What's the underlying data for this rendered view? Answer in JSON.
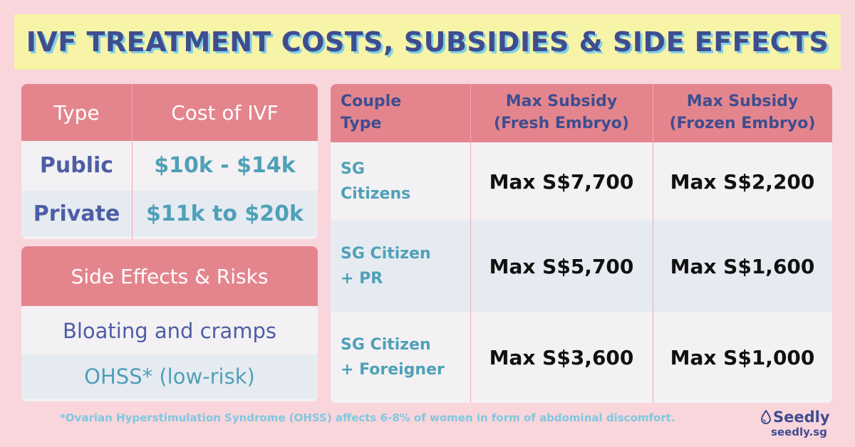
{
  "title": "IVF TREATMENT COSTS, SUBSIDIES & SIDE EFFECTS",
  "cost_table": {
    "headers": [
      "Type",
      "Cost of IVF"
    ],
    "rows": [
      {
        "type": "Public",
        "cost": "$10k - $14k"
      },
      {
        "type": "Private",
        "cost": "$11k to $20k"
      }
    ]
  },
  "side_effects": {
    "header": "Side Effects & Risks",
    "items": [
      "Bloating and cramps",
      "OHSS* (low-risk)"
    ],
    "colors": [
      "#4c5ea4",
      "#4fa0b8"
    ]
  },
  "subsidy_table": {
    "headers": [
      "Couple\nType",
      "Max Subsidy\n(Fresh Embryo)",
      "Max Subsidy\n(Frozen Embryo)"
    ],
    "rows": [
      {
        "couple": "SG\nCitizens",
        "fresh": "Max S$7,700",
        "frozen": "Max S$2,200"
      },
      {
        "couple": "SG Citizen\n+ PR",
        "fresh": "Max S$5,700",
        "frozen": "Max S$1,600"
      },
      {
        "couple": "SG Citizen\n+ Foreigner",
        "fresh": "Max S$3,600",
        "frozen": "Max S$1,000"
      }
    ]
  },
  "footnote": "*Ovarian Hyperstimulation Syndrome (OHSS) affects 6-8% of women in form of abdominal discomfort.",
  "brand": {
    "name": "Seedly",
    "url": "seedly.sg",
    "icon": "drop-icon"
  },
  "colors": {
    "background": "#f9d5dc",
    "banner": "#f7f4a8",
    "header": "#e4858e",
    "navy": "#3f4d8f",
    "teal": "#4fa0b8",
    "stripe": "#e6ebf1"
  }
}
